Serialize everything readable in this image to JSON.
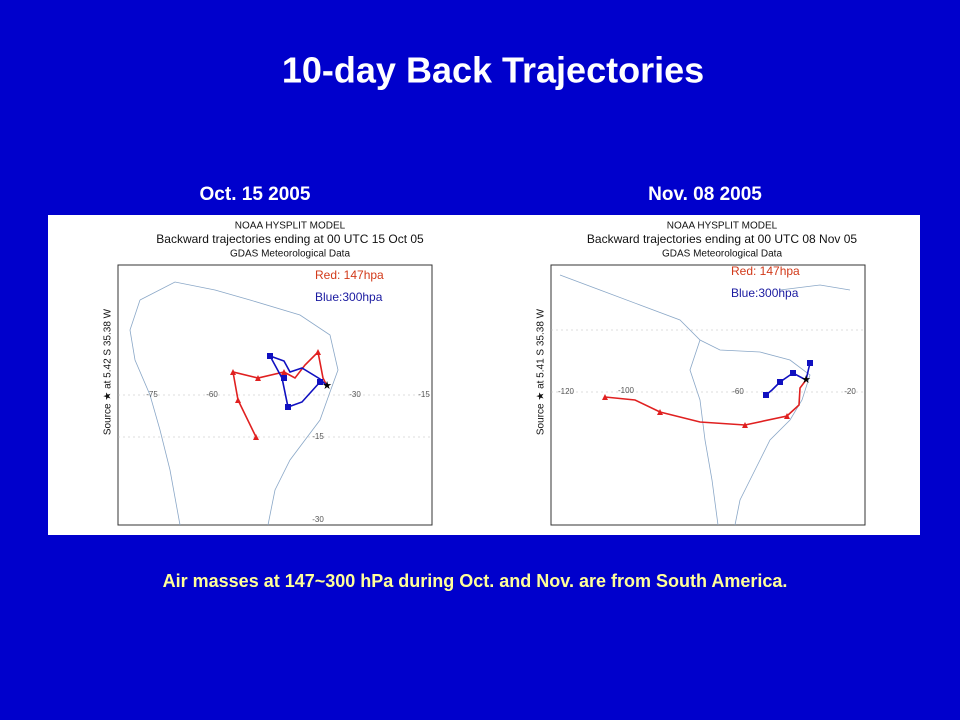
{
  "title": "10-day Back Trajectories",
  "panels": [
    {
      "label": "Oct. 15 2005",
      "map": {
        "header": [
          "NOAA HYSPLIT MODEL",
          "Backward trajectories ending at 00 UTC 15 Oct 05",
          "GDAS Meteorological Data"
        ],
        "legend": [
          "Red: 147hpa",
          "Blue:300hpa"
        ],
        "source_label": "Source ★ at   5.42 S   35.38 W",
        "lon_labels": [
          "-75",
          "-60",
          "-30",
          "-15"
        ],
        "lat_labels": [
          "-15",
          "-30"
        ]
      }
    },
    {
      "label": "Nov. 08 2005",
      "map": {
        "header": [
          "NOAA HYSPLIT MODEL",
          "Backward trajectories ending at 00 UTC 08 Nov 05",
          "GDAS Meteorological Data"
        ],
        "legend": [
          "Red: 147hpa",
          "Blue:300hpa"
        ],
        "source_label": "Source ★ at   5.41 S   35.38 W",
        "lon_labels": [
          "-120",
          "-100",
          "-60",
          "-20"
        ],
        "lat_labels": []
      }
    }
  ],
  "caption": "Air masses at 147~300 hPa during Oct. and Nov. are from South America."
}
